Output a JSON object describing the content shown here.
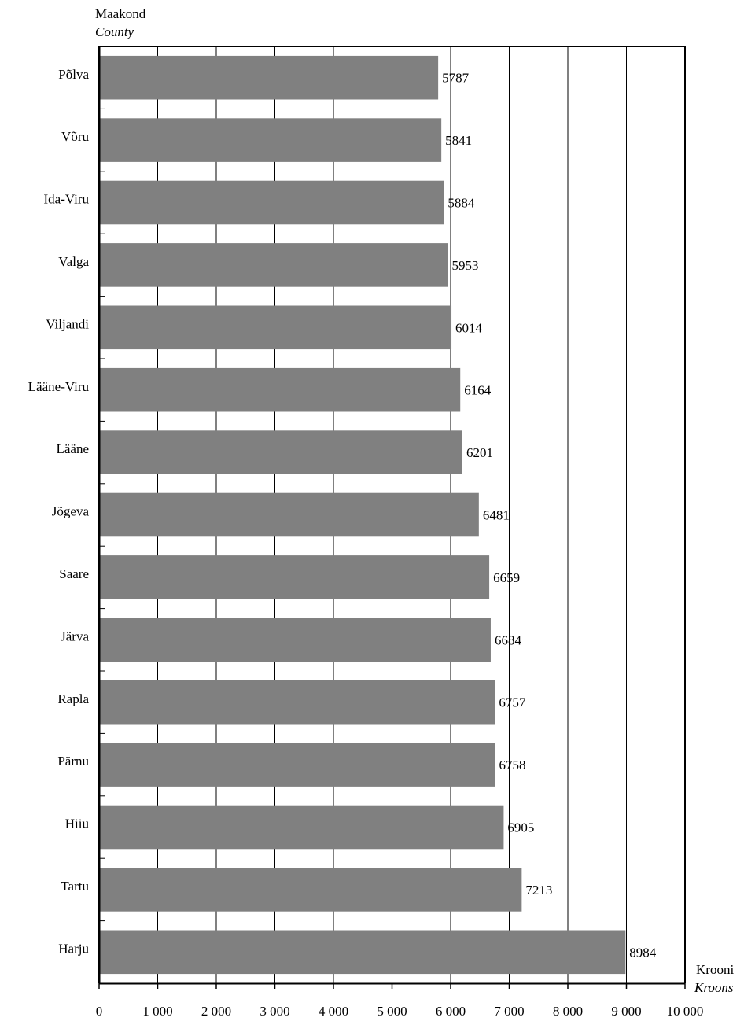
{
  "chart_data": {
    "type": "bar",
    "orientation": "horizontal",
    "y_title": "Maakond",
    "y_title_en": "County",
    "x_title": "Krooni",
    "x_title_en": "Kroons",
    "categories": [
      "Põlva",
      "Võru",
      "Ida-Viru",
      "Valga",
      "Viljandi",
      "Lääne-Viru",
      "Lääne",
      "Jõgeva",
      "Saare",
      "Järva",
      "Rapla",
      "Pärnu",
      "Hiiu",
      "Tartu",
      "Harju"
    ],
    "values": [
      5787,
      5841,
      5884,
      5953,
      6014,
      6164,
      6201,
      6481,
      6659,
      6684,
      6757,
      6758,
      6905,
      7213,
      8984
    ],
    "value_labels": [
      "5787",
      "5841",
      "5884",
      "5953",
      "6014",
      "6164",
      "6201",
      "6481",
      "6659",
      "6684",
      "6757",
      "6758",
      "6905",
      "7213",
      "8984"
    ],
    "xlim": [
      0,
      10000
    ],
    "x_ticks": [
      0,
      1000,
      2000,
      3000,
      4000,
      5000,
      6000,
      7000,
      8000,
      9000,
      10000
    ],
    "x_tick_labels": [
      "0",
      "1 000",
      "2 000",
      "3 000",
      "4 000",
      "5 000",
      "6 000",
      "7 000",
      "8 000",
      "9 000",
      "10 000"
    ],
    "grid": "vertical",
    "bar_color": "#808080",
    "legend": "none"
  }
}
